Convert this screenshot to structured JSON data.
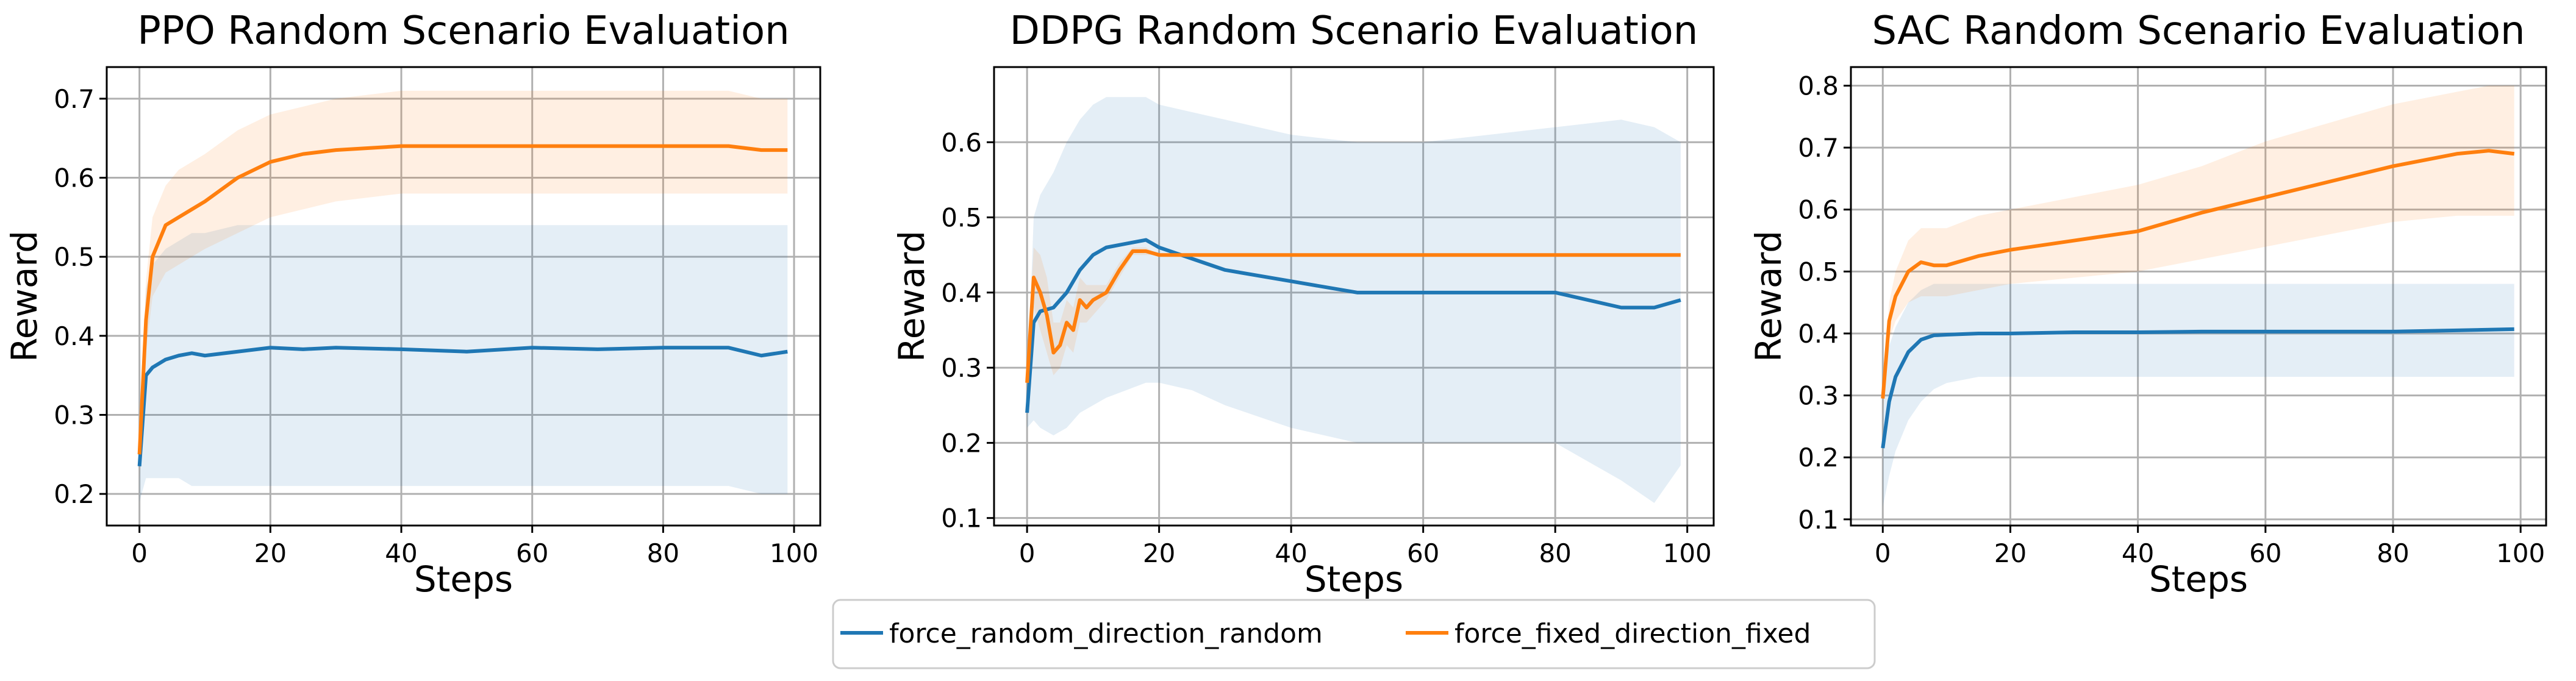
{
  "legend": {
    "entries": [
      {
        "label": "force_random_direction_random",
        "color": "#1f77b4"
      },
      {
        "label": "force_fixed_direction_fixed",
        "color": "#ff7f0e"
      }
    ]
  },
  "chart_data": [
    {
      "type": "line",
      "title": "PPO Random Scenario Evaluation",
      "xlabel": "Steps",
      "ylabel": "Reward",
      "xlim": [
        -5,
        104
      ],
      "ylim": [
        0.16,
        0.74
      ],
      "xticks": [
        0,
        20,
        40,
        60,
        80,
        100
      ],
      "yticks": [
        0.2,
        0.3,
        0.4,
        0.5,
        0.6,
        0.7
      ],
      "grid": true,
      "series": [
        {
          "name": "force_random_direction_random",
          "color": "#1f77b4",
          "x": [
            0,
            1,
            2,
            4,
            6,
            8,
            10,
            15,
            20,
            25,
            30,
            40,
            50,
            60,
            70,
            80,
            90,
            95,
            99
          ],
          "values": [
            0.235,
            0.35,
            0.36,
            0.37,
            0.375,
            0.378,
            0.375,
            0.38,
            0.385,
            0.383,
            0.385,
            0.383,
            0.38,
            0.385,
            0.383,
            0.385,
            0.385,
            0.375,
            0.38
          ],
          "band_lower": [
            0.19,
            0.22,
            0.22,
            0.22,
            0.22,
            0.21,
            0.21,
            0.21,
            0.21,
            0.21,
            0.21,
            0.21,
            0.21,
            0.21,
            0.21,
            0.21,
            0.21,
            0.2,
            0.2
          ],
          "band_upper": [
            0.27,
            0.46,
            0.49,
            0.51,
            0.52,
            0.53,
            0.53,
            0.54,
            0.54,
            0.54,
            0.54,
            0.54,
            0.54,
            0.54,
            0.54,
            0.54,
            0.54,
            0.54,
            0.54
          ]
        },
        {
          "name": "force_fixed_direction_fixed",
          "color": "#ff7f0e",
          "x": [
            0,
            1,
            2,
            4,
            6,
            8,
            10,
            15,
            20,
            25,
            30,
            40,
            50,
            60,
            70,
            80,
            90,
            95,
            99
          ],
          "values": [
            0.25,
            0.42,
            0.5,
            0.54,
            0.55,
            0.56,
            0.57,
            0.6,
            0.62,
            0.63,
            0.635,
            0.64,
            0.64,
            0.64,
            0.64,
            0.64,
            0.64,
            0.635,
            0.635
          ],
          "band_lower": [
            0.22,
            0.38,
            0.45,
            0.48,
            0.49,
            0.5,
            0.51,
            0.53,
            0.55,
            0.56,
            0.57,
            0.58,
            0.58,
            0.58,
            0.58,
            0.58,
            0.58,
            0.58,
            0.58
          ],
          "band_upper": [
            0.29,
            0.47,
            0.55,
            0.59,
            0.61,
            0.62,
            0.63,
            0.66,
            0.68,
            0.69,
            0.7,
            0.71,
            0.71,
            0.71,
            0.71,
            0.71,
            0.71,
            0.7,
            0.7
          ]
        }
      ]
    },
    {
      "type": "line",
      "title": "DDPG Random Scenario Evaluation",
      "xlabel": "Steps",
      "ylabel": "Reward",
      "xlim": [
        -5,
        104
      ],
      "ylim": [
        0.09,
        0.7
      ],
      "xticks": [
        0,
        20,
        40,
        60,
        80,
        100
      ],
      "yticks": [
        0.1,
        0.2,
        0.3,
        0.4,
        0.5,
        0.6
      ],
      "grid": true,
      "series": [
        {
          "name": "force_random_direction_random",
          "color": "#1f77b4",
          "x": [
            0,
            1,
            2,
            4,
            6,
            8,
            10,
            12,
            15,
            18,
            20,
            25,
            30,
            40,
            50,
            60,
            70,
            80,
            90,
            95,
            99
          ],
          "values": [
            0.24,
            0.36,
            0.375,
            0.38,
            0.4,
            0.43,
            0.45,
            0.46,
            0.465,
            0.47,
            0.46,
            0.445,
            0.43,
            0.415,
            0.4,
            0.4,
            0.4,
            0.4,
            0.38,
            0.38,
            0.39
          ],
          "band_lower": [
            0.22,
            0.23,
            0.22,
            0.21,
            0.22,
            0.24,
            0.25,
            0.26,
            0.27,
            0.28,
            0.28,
            0.27,
            0.25,
            0.22,
            0.2,
            0.2,
            0.2,
            0.2,
            0.15,
            0.12,
            0.17
          ],
          "band_upper": [
            0.26,
            0.5,
            0.53,
            0.56,
            0.6,
            0.63,
            0.65,
            0.66,
            0.66,
            0.66,
            0.65,
            0.64,
            0.63,
            0.61,
            0.6,
            0.6,
            0.61,
            0.62,
            0.63,
            0.62,
            0.6
          ]
        },
        {
          "name": "force_fixed_direction_fixed",
          "color": "#ff7f0e",
          "x": [
            0,
            1,
            2,
            3,
            4,
            5,
            6,
            7,
            8,
            9,
            10,
            12,
            14,
            16,
            18,
            20,
            25,
            30,
            40,
            50,
            60,
            70,
            80,
            90,
            99
          ],
          "values": [
            0.28,
            0.42,
            0.4,
            0.37,
            0.32,
            0.33,
            0.36,
            0.35,
            0.39,
            0.38,
            0.39,
            0.4,
            0.43,
            0.455,
            0.455,
            0.45,
            0.45,
            0.45,
            0.45,
            0.45,
            0.45,
            0.45,
            0.45,
            0.45,
            0.45
          ],
          "band_lower": [
            0.26,
            0.38,
            0.35,
            0.32,
            0.29,
            0.3,
            0.33,
            0.32,
            0.36,
            0.36,
            0.37,
            0.39,
            0.42,
            0.45,
            0.45,
            0.45,
            0.45,
            0.45,
            0.45,
            0.45,
            0.45,
            0.45,
            0.45,
            0.45,
            0.45
          ],
          "band_upper": [
            0.3,
            0.46,
            0.45,
            0.42,
            0.36,
            0.36,
            0.39,
            0.38,
            0.42,
            0.41,
            0.41,
            0.41,
            0.44,
            0.46,
            0.46,
            0.45,
            0.45,
            0.45,
            0.45,
            0.45,
            0.45,
            0.45,
            0.45,
            0.45,
            0.45
          ]
        }
      ]
    },
    {
      "type": "line",
      "title": "SAC Random Scenario Evaluation",
      "xlabel": "Steps",
      "ylabel": "Reward",
      "xlim": [
        -5,
        104
      ],
      "ylim": [
        0.09,
        0.83
      ],
      "xticks": [
        0,
        20,
        40,
        60,
        80,
        100
      ],
      "yticks": [
        0.1,
        0.2,
        0.3,
        0.4,
        0.5,
        0.6,
        0.7,
        0.8
      ],
      "grid": true,
      "series": [
        {
          "name": "force_random_direction_random",
          "color": "#1f77b4",
          "x": [
            0,
            1,
            2,
            4,
            6,
            8,
            10,
            15,
            20,
            30,
            40,
            50,
            60,
            70,
            80,
            90,
            99
          ],
          "values": [
            0.215,
            0.29,
            0.33,
            0.37,
            0.39,
            0.397,
            0.398,
            0.4,
            0.4,
            0.402,
            0.402,
            0.403,
            0.403,
            0.403,
            0.403,
            0.405,
            0.407
          ],
          "band_lower": [
            0.12,
            0.17,
            0.21,
            0.26,
            0.29,
            0.31,
            0.32,
            0.33,
            0.33,
            0.33,
            0.33,
            0.33,
            0.33,
            0.33,
            0.33,
            0.33,
            0.33
          ],
          "band_upper": [
            0.3,
            0.38,
            0.41,
            0.45,
            0.47,
            0.48,
            0.48,
            0.48,
            0.48,
            0.48,
            0.48,
            0.48,
            0.48,
            0.48,
            0.48,
            0.48,
            0.48
          ]
        },
        {
          "name": "force_fixed_direction_fixed",
          "color": "#ff7f0e",
          "x": [
            0,
            1,
            2,
            4,
            6,
            8,
            10,
            15,
            20,
            30,
            40,
            50,
            60,
            70,
            80,
            90,
            95,
            99
          ],
          "values": [
            0.295,
            0.42,
            0.46,
            0.5,
            0.515,
            0.51,
            0.51,
            0.525,
            0.535,
            0.55,
            0.565,
            0.595,
            0.62,
            0.645,
            0.67,
            0.69,
            0.695,
            0.69
          ],
          "band_lower": [
            0.27,
            0.39,
            0.42,
            0.45,
            0.46,
            0.46,
            0.46,
            0.47,
            0.48,
            0.49,
            0.5,
            0.52,
            0.54,
            0.56,
            0.58,
            0.59,
            0.59,
            0.59
          ],
          "band_upper": [
            0.32,
            0.45,
            0.5,
            0.55,
            0.57,
            0.57,
            0.57,
            0.59,
            0.6,
            0.62,
            0.64,
            0.67,
            0.71,
            0.74,
            0.77,
            0.79,
            0.8,
            0.8
          ]
        }
      ]
    }
  ]
}
